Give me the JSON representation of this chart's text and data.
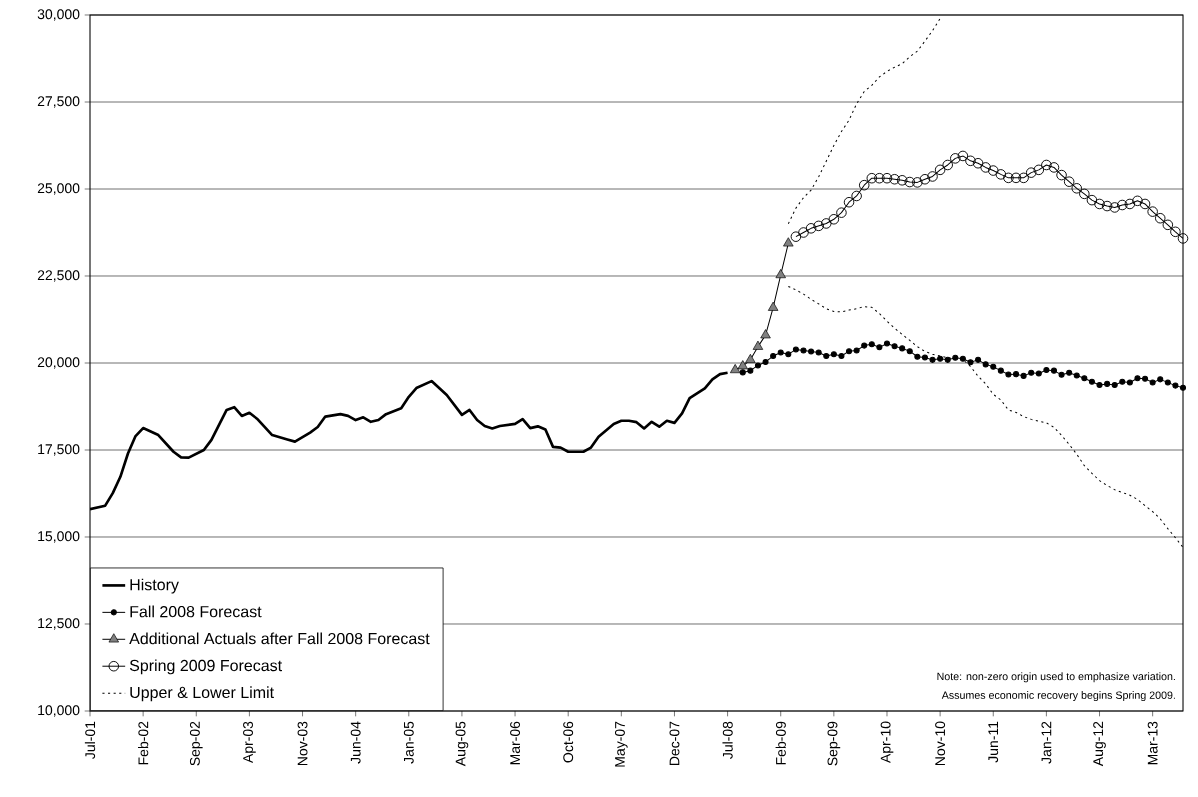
{
  "chart_data": {
    "type": "line",
    "xlim": [
      "2001-07",
      "2013-07"
    ],
    "ylim": [
      10000,
      30000
    ],
    "xticks": [
      {
        "value": "2001-07",
        "label": "Jul-01"
      },
      {
        "value": "2002-02",
        "label": "Feb-02"
      },
      {
        "value": "2002-09",
        "label": "Sep-02"
      },
      {
        "value": "2003-04",
        "label": "Apr-03"
      },
      {
        "value": "2003-11",
        "label": "Nov-03"
      },
      {
        "value": "2004-06",
        "label": "Jun-04"
      },
      {
        "value": "2005-01",
        "label": "Jan-05"
      },
      {
        "value": "2005-08",
        "label": "Aug-05"
      },
      {
        "value": "2006-03",
        "label": "Mar-06"
      },
      {
        "value": "2006-10",
        "label": "Oct-06"
      },
      {
        "value": "2007-05",
        "label": "May-07"
      },
      {
        "value": "2007-12",
        "label": "Dec-07"
      },
      {
        "value": "2008-07",
        "label": "Jul-08"
      },
      {
        "value": "2009-02",
        "label": "Feb-09"
      },
      {
        "value": "2009-09",
        "label": "Sep-09"
      },
      {
        "value": "2010-04",
        "label": "Apr-10"
      },
      {
        "value": "2010-11",
        "label": "Nov-10"
      },
      {
        "value": "2011-06",
        "label": "Jun-11"
      },
      {
        "value": "2012-01",
        "label": "Jan-12"
      },
      {
        "value": "2012-08",
        "label": "Aug-12"
      },
      {
        "value": "2013-03",
        "label": "Mar-13"
      }
    ],
    "yticks": [
      {
        "value": 10000,
        "label": "10,000"
      },
      {
        "value": 12500,
        "label": "12,500"
      },
      {
        "value": 15000,
        "label": "15,000"
      },
      {
        "value": 17500,
        "label": "17,500"
      },
      {
        "value": 20000,
        "label": "20,000"
      },
      {
        "value": 22500,
        "label": "22,500"
      },
      {
        "value": 25000,
        "label": "25,000"
      },
      {
        "value": 27500,
        "label": "27,500"
      },
      {
        "value": 30000,
        "label": "30,000"
      }
    ],
    "grid": "y",
    "legend": "bottom left",
    "series": [
      {
        "name": "History",
        "color": "#000000",
        "marker": "none",
        "x": [
          "2001-07",
          "2001-09",
          "2001-10",
          "2001-11",
          "2001-12",
          "2002-01",
          "2002-02",
          "2002-04",
          "2002-06",
          "2002-07",
          "2002-08",
          "2002-10",
          "2002-11",
          "2003-01",
          "2003-02",
          "2003-03",
          "2003-04",
          "2003-05",
          "2003-07",
          "2003-09",
          "2003-10",
          "2003-12",
          "2004-01",
          "2004-02",
          "2004-04",
          "2004-05",
          "2004-06",
          "2004-07",
          "2004-08",
          "2004-09",
          "2004-10",
          "2004-12",
          "2005-01",
          "2005-02",
          "2005-04",
          "2005-06",
          "2005-08",
          "2005-09",
          "2005-10",
          "2005-11",
          "2005-12",
          "2006-01",
          "2006-03",
          "2006-04",
          "2006-05",
          "2006-06",
          "2006-07",
          "2006-08",
          "2006-09",
          "2006-10",
          "2006-12",
          "2007-01",
          "2007-02",
          "2007-04",
          "2007-05",
          "2007-06",
          "2007-07",
          "2007-08",
          "2007-09",
          "2007-10",
          "2007-11",
          "2007-12",
          "2008-01",
          "2008-02",
          "2008-04",
          "2008-05",
          "2008-06",
          "2008-07"
        ],
        "values": [
          15800,
          15900,
          16260,
          16730,
          17400,
          17900,
          18130,
          17930,
          17450,
          17290,
          17280,
          17500,
          17790,
          18650,
          18730,
          18480,
          18570,
          18400,
          17930,
          17800,
          17740,
          18000,
          18160,
          18460,
          18530,
          18480,
          18360,
          18440,
          18310,
          18360,
          18530,
          18700,
          19030,
          19280,
          19480,
          19080,
          18510,
          18650,
          18360,
          18190,
          18120,
          18190,
          18250,
          18390,
          18130,
          18180,
          18090,
          17590,
          17570,
          17450,
          17450,
          17570,
          17880,
          18250,
          18340,
          18340,
          18300,
          18120,
          18310,
          18170,
          18340,
          18280,
          18550,
          18990,
          19270,
          19530,
          19680,
          19720
        ]
      },
      {
        "name": "Fall 2008 Forecast",
        "color": "#000000",
        "marker": "circle",
        "x": [
          "2008-09",
          "2008-10",
          "2008-11",
          "2008-12",
          "2009-01",
          "2009-02",
          "2009-03",
          "2009-04",
          "2009-05",
          "2009-06",
          "2009-07",
          "2009-08",
          "2009-09",
          "2009-10",
          "2009-11",
          "2009-12",
          "2010-01",
          "2010-02",
          "2010-03",
          "2010-04",
          "2010-05",
          "2010-06",
          "2010-07",
          "2010-08",
          "2010-09",
          "2010-10",
          "2010-11",
          "2010-12",
          "2011-01",
          "2011-02",
          "2011-03",
          "2011-04",
          "2011-05",
          "2011-06",
          "2011-07",
          "2011-08",
          "2011-09",
          "2011-10",
          "2011-11",
          "2011-12",
          "2012-01",
          "2012-02",
          "2012-03",
          "2012-04",
          "2012-05",
          "2012-06",
          "2012-07",
          "2012-08",
          "2012-09",
          "2012-10",
          "2012-11",
          "2012-12",
          "2013-01",
          "2013-02",
          "2013-03",
          "2013-04",
          "2013-05",
          "2013-06",
          "2013-07"
        ],
        "values": [
          19730,
          19780,
          19930,
          20030,
          20200,
          20300,
          20250,
          20390,
          20360,
          20330,
          20300,
          20200,
          20250,
          20200,
          20340,
          20360,
          20500,
          20540,
          20450,
          20560,
          20480,
          20420,
          20340,
          20180,
          20160,
          20090,
          20120,
          20090,
          20150,
          20120,
          20020,
          20090,
          19960,
          19890,
          19780,
          19670,
          19680,
          19630,
          19720,
          19700,
          19800,
          19780,
          19660,
          19720,
          19640,
          19560,
          19460,
          19370,
          19400,
          19370,
          19460,
          19440,
          19560,
          19550,
          19440,
          19530,
          19440,
          19350,
          19290
        ]
      },
      {
        "name": "Additional Actuals after Fall 2008 Forecast",
        "color": "#000000",
        "marker": "triangle",
        "x": [
          "2008-08",
          "2008-09",
          "2008-10",
          "2008-11",
          "2008-12",
          "2009-01",
          "2009-02",
          "2009-03"
        ],
        "values": [
          19800,
          19910,
          20090,
          20470,
          20800,
          21590,
          22530,
          23440
        ]
      },
      {
        "name": "Spring 2009 Forecast",
        "color": "#000000",
        "marker": "circle",
        "x": [
          "2009-04",
          "2009-05",
          "2009-06",
          "2009-07",
          "2009-08",
          "2009-09",
          "2009-10",
          "2009-11",
          "2009-12",
          "2010-01",
          "2010-02",
          "2010-03",
          "2010-04",
          "2010-05",
          "2010-06",
          "2010-07",
          "2010-08",
          "2010-09",
          "2010-10",
          "2010-11",
          "2010-12",
          "2011-01",
          "2011-02",
          "2011-03",
          "2011-04",
          "2011-05",
          "2011-06",
          "2011-07",
          "2011-08",
          "2011-09",
          "2011-10",
          "2011-11",
          "2011-12",
          "2012-01",
          "2012-02",
          "2012-03",
          "2012-04",
          "2012-05",
          "2012-06",
          "2012-07",
          "2012-08",
          "2012-09",
          "2012-10",
          "2012-11",
          "2012-12",
          "2013-01",
          "2013-02",
          "2013-03",
          "2013-04",
          "2013-05",
          "2013-06",
          "2013-07"
        ],
        "values": [
          23630,
          23750,
          23870,
          23940,
          24010,
          24130,
          24320,
          24620,
          24800,
          25110,
          25310,
          25310,
          25310,
          25280,
          25250,
          25200,
          25190,
          25280,
          25360,
          25550,
          25690,
          25880,
          25950,
          25810,
          25740,
          25620,
          25530,
          25420,
          25320,
          25320,
          25320,
          25470,
          25550,
          25690,
          25620,
          25400,
          25210,
          25020,
          24860,
          24680,
          24570,
          24510,
          24470,
          24540,
          24570,
          24660,
          24570,
          24350,
          24160,
          23970,
          23770,
          23580
        ]
      },
      {
        "name": "Upper & Lower Limit",
        "color": "#000000",
        "marker": "none",
        "line_style": "dotted",
        "x": [
          "2009-03",
          "2009-04",
          "2009-05",
          "2009-06",
          "2009-07",
          "2009-08",
          "2009-09",
          "2009-10",
          "2009-11",
          "2009-12",
          "2010-01",
          "2010-02",
          "2010-03",
          "2010-04",
          "2010-05",
          "2010-06",
          "2010-07",
          "2010-08",
          "2010-09",
          "2010-10",
          "2010-11"
        ],
        "values": [
          24000,
          24450,
          24750,
          24970,
          25350,
          25800,
          26250,
          26650,
          26980,
          27450,
          27800,
          27980,
          28220,
          28380,
          28500,
          28600,
          28800,
          28960,
          29250,
          29550,
          29900
        ]
      },
      {
        "color": "#000000",
        "marker": "none",
        "line_style": "dotted",
        "x": [
          "2009-03",
          "2009-04",
          "2009-05",
          "2009-06",
          "2009-07",
          "2009-08",
          "2009-09",
          "2009-10",
          "2009-11",
          "2009-12",
          "2010-01",
          "2010-02",
          "2010-03",
          "2010-04",
          "2010-05",
          "2010-06",
          "2010-07",
          "2010-08",
          "2010-09",
          "2010-10",
          "2010-11",
          "2010-12",
          "2011-01",
          "2011-02",
          "2011-03",
          "2011-04",
          "2011-05",
          "2011-06",
          "2011-07",
          "2011-08",
          "2011-09",
          "2011-10",
          "2011-11",
          "2011-12",
          "2012-01",
          "2012-02",
          "2012-03",
          "2012-04",
          "2012-05",
          "2012-06",
          "2012-07",
          "2012-08",
          "2012-09",
          "2012-10",
          "2012-11",
          "2012-12",
          "2013-01",
          "2013-02",
          "2013-03",
          "2013-04",
          "2013-05",
          "2013-06",
          "2013-07"
        ],
        "values": [
          22200,
          22100,
          21980,
          21830,
          21700,
          21560,
          21480,
          21470,
          21520,
          21560,
          21620,
          21600,
          21420,
          21200,
          21000,
          20820,
          20650,
          20470,
          20330,
          20250,
          20200,
          20150,
          20120,
          20100,
          19900,
          19620,
          19400,
          19100,
          18940,
          18650,
          18580,
          18460,
          18380,
          18330,
          18280,
          18150,
          17920,
          17660,
          17380,
          17050,
          16830,
          16620,
          16480,
          16360,
          16280,
          16200,
          16080,
          15900,
          15730,
          15520,
          15240,
          14980,
          14700
        ]
      }
    ],
    "annotations": [
      "Note: non-zero origin used to emphasize variation.",
      "Assumes economic recovery begins Spring 2009."
    ]
  }
}
